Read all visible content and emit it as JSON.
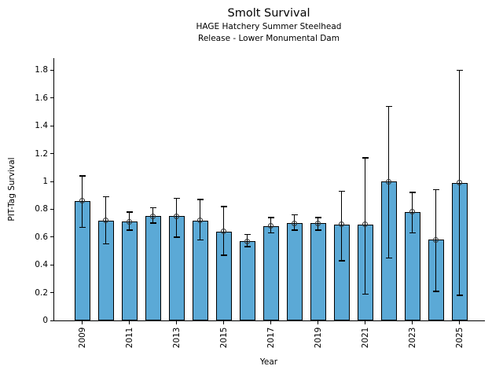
{
  "chart_data": {
    "type": "bar",
    "title": "Smolt Survival",
    "subtitle1": "HAGE Hatchery Summer Steelhead",
    "subtitle2": "Release - Lower Monumental Dam",
    "xlabel": "Year",
    "ylabel": "PIT-Tag Survival",
    "categories": [
      2009,
      2010,
      2011,
      2012,
      2013,
      2014,
      2015,
      2016,
      2017,
      2018,
      2019,
      2020,
      2021,
      2022,
      2023,
      2024,
      2025
    ],
    "values": [
      0.86,
      0.72,
      0.71,
      0.75,
      0.75,
      0.72,
      0.64,
      0.57,
      0.68,
      0.7,
      0.7,
      0.69,
      0.69,
      1.0,
      0.78,
      0.58,
      0.99
    ],
    "error_low": [
      0.67,
      0.55,
      0.65,
      0.7,
      0.6,
      0.58,
      0.47,
      0.53,
      0.63,
      0.65,
      0.65,
      0.43,
      0.19,
      0.45,
      0.63,
      0.21,
      0.18
    ],
    "error_high": [
      1.04,
      0.89,
      0.78,
      0.81,
      0.88,
      0.87,
      0.82,
      0.62,
      0.74,
      0.76,
      0.74,
      0.93,
      1.17,
      1.54,
      0.92,
      0.94,
      1.8
    ],
    "ylim": [
      0,
      1.88
    ],
    "yticks": [
      0,
      0.2,
      0.4,
      0.6,
      0.8,
      1,
      1.2,
      1.4,
      1.6,
      1.8
    ],
    "ytick_labels": [
      "0",
      "0.2",
      "0.4",
      "0.6",
      "0.8",
      "1",
      "1.2",
      "1.4",
      "1.6",
      "1.8"
    ],
    "xticks": [
      2009,
      2011,
      2013,
      2015,
      2017,
      2019,
      2021,
      2023,
      2025
    ],
    "xtick_labels": [
      "2009",
      "2011",
      "2013",
      "2015",
      "2017",
      "2019",
      "2021",
      "2023",
      "2025"
    ],
    "bar_color": "#5BA9D6",
    "bar_edge_color": "#000000",
    "error_color": "#000000",
    "marker": "open-circle",
    "grid": false,
    "legend": "none"
  }
}
